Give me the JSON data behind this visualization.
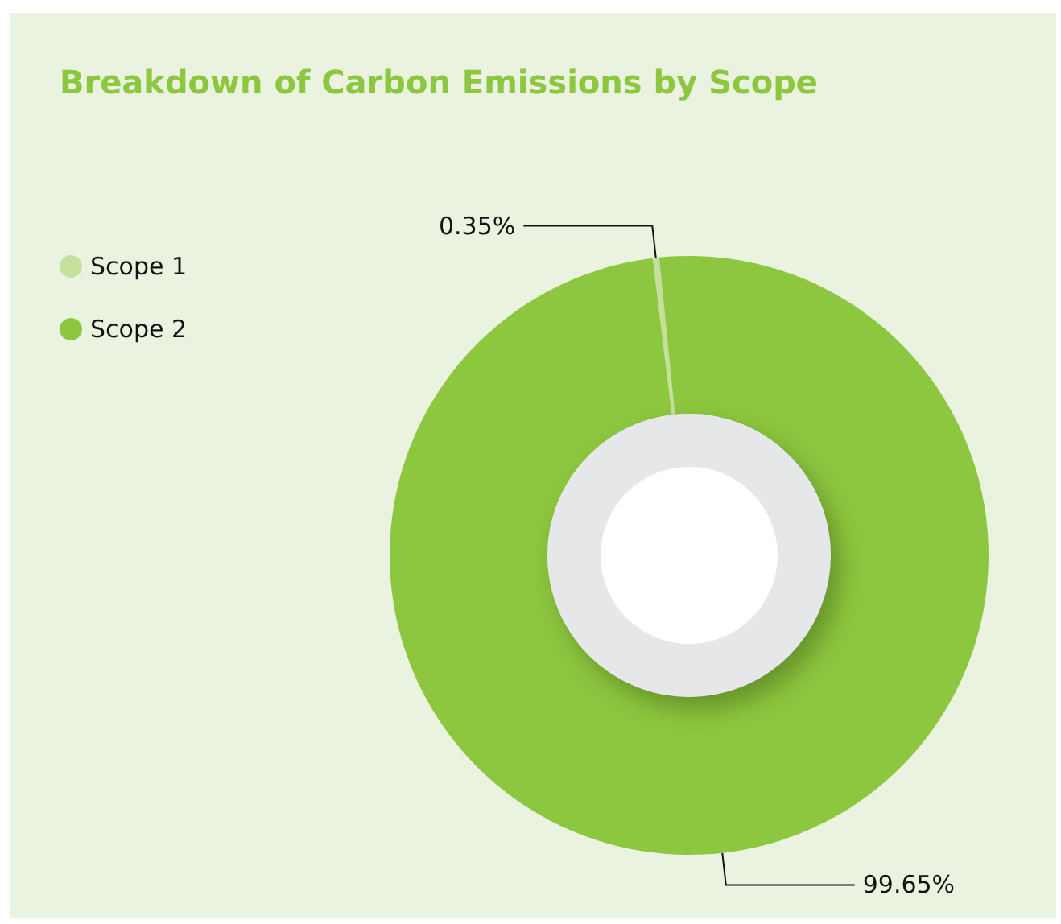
{
  "chart_data": {
    "type": "donut",
    "title": "Breakdown of Carbon Emissions by Scope",
    "categories": [
      "Scope 1",
      "Scope 2"
    ],
    "values": [
      0.35,
      99.65
    ],
    "colors": [
      "#c5e09b",
      "#8dc63f"
    ],
    "legend": "top left",
    "value_labels": [
      "0.35%",
      "99.65%"
    ]
  }
}
